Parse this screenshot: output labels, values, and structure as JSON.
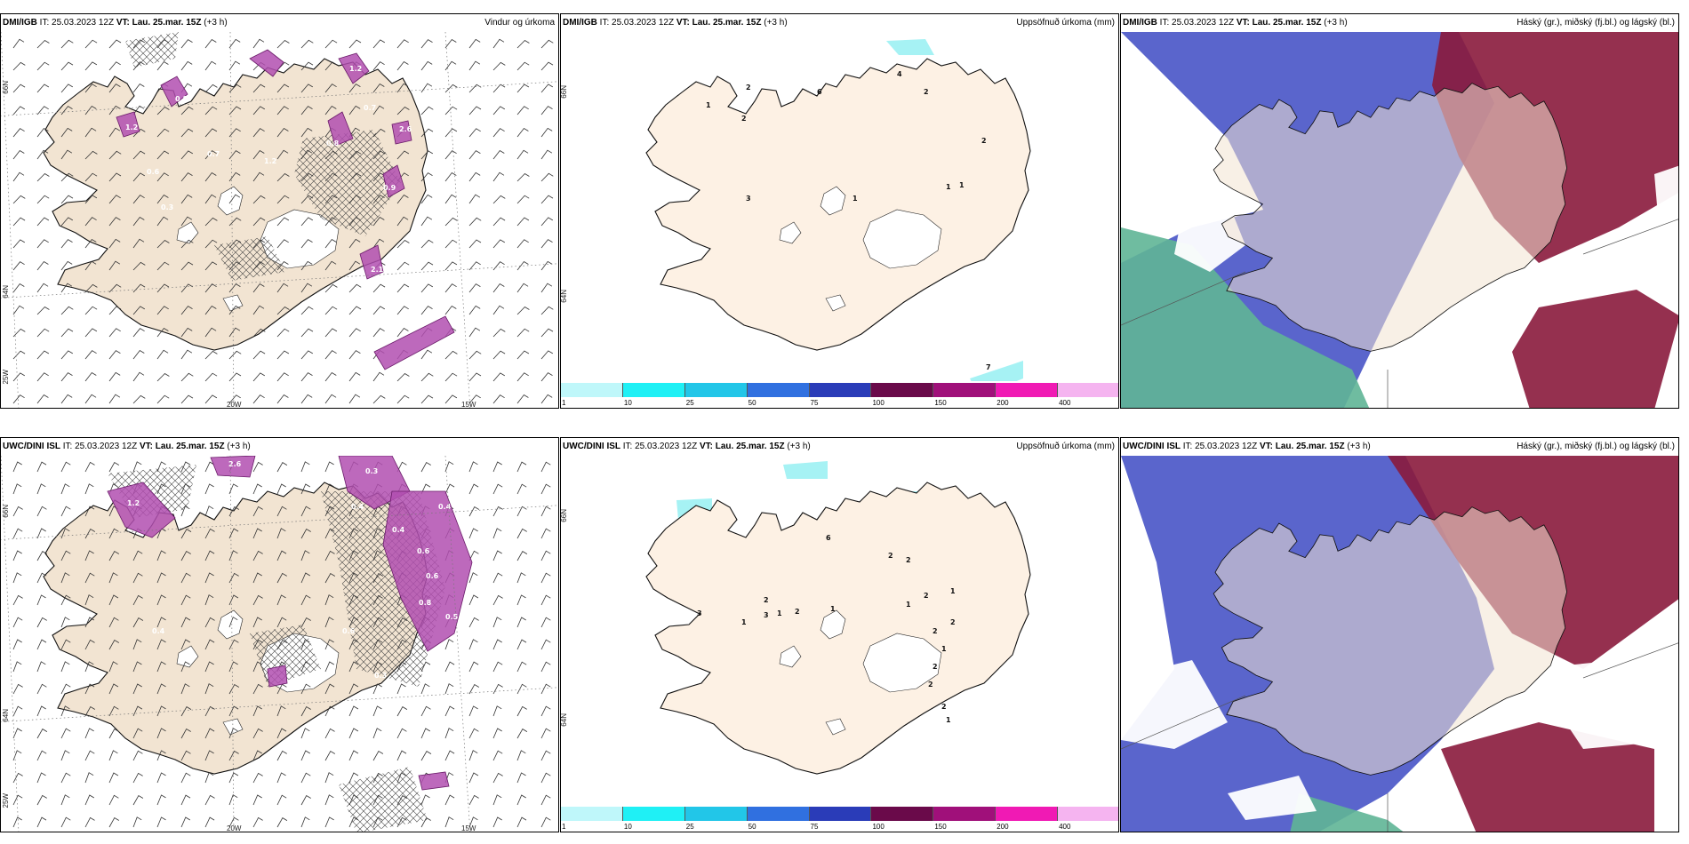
{
  "rows": [
    {
      "model": "DMI/IGB",
      "it_label": "IT:",
      "it_value": "25.03.2023 12Z",
      "vt_label": "VT:",
      "vt_value": "Lau. 25.mar. 15Z",
      "lead": "(+3 h)",
      "titles": [
        "Vindur og úrkoma",
        "Uppsöfnuð úrkoma (mm)",
        "Háský (gr.), miðský (fj.bl.) og lágský (bl.)"
      ],
      "precip_labels": [
        "1.2",
        "0.7",
        "0.8",
        "1.2",
        "0.9",
        "2.6",
        "0.5",
        "1.2",
        "0.3",
        "0.6",
        "0.8",
        "2.1",
        "0.7"
      ],
      "accum_labels": [
        "1",
        "2",
        "2",
        "3",
        "6",
        "4",
        "2",
        "1",
        "2",
        "1",
        "7",
        "1"
      ]
    },
    {
      "model": "UWC/DINI ISL",
      "it_label": "IT:",
      "it_value": "25.03.2023 12Z",
      "vt_label": "VT:",
      "vt_value": "Lau. 25.mar. 15Z",
      "lead": "(+3 h)",
      "titles": [
        "",
        "Uppsöfnuð úrkoma (mm)",
        "Háský (gr.), miðský (fj.bl.) og lágský (bl.)"
      ],
      "precip_labels": [
        "2.6",
        "1.2",
        "0.3",
        "0.4",
        "0.4",
        "0.6",
        "0.8",
        "0.4",
        "0.6",
        "0.3",
        "0.5",
        "0.6",
        "0.4"
      ],
      "accum_labels": [
        "3",
        "1",
        "2",
        "3",
        "2",
        "1",
        "6",
        "1",
        "2",
        "2",
        "1",
        "2",
        "1",
        "2",
        "2",
        "1",
        "2",
        "2",
        "2",
        "1"
      ]
    }
  ],
  "axis_labels": {
    "lat_top": "66N",
    "lat_mid": "64N",
    "lon_left": "25W",
    "lon_mid": "20W",
    "lon_right": "15W"
  },
  "colorbar": {
    "ticks": [
      "1",
      "10",
      "25",
      "50",
      "75",
      "100",
      "150",
      "200",
      "400",
      ""
    ],
    "colors": [
      "#bff7fa",
      "#1ff0f5",
      "#22c6e8",
      "#3070e0",
      "#2a3cb8",
      "#6a0a4a",
      "#a0107a",
      "#f01ab4",
      "#f5b4f0"
    ]
  },
  "colors": {
    "land": "#f2e4d2",
    "land_light": "#fdf1e4",
    "precip": "#b24fb0",
    "accum": "#a6f2f4",
    "high_cloud": "#5fb596",
    "mid_cloud": "#8a1a3c",
    "low_cloud": "#4c58c8"
  }
}
